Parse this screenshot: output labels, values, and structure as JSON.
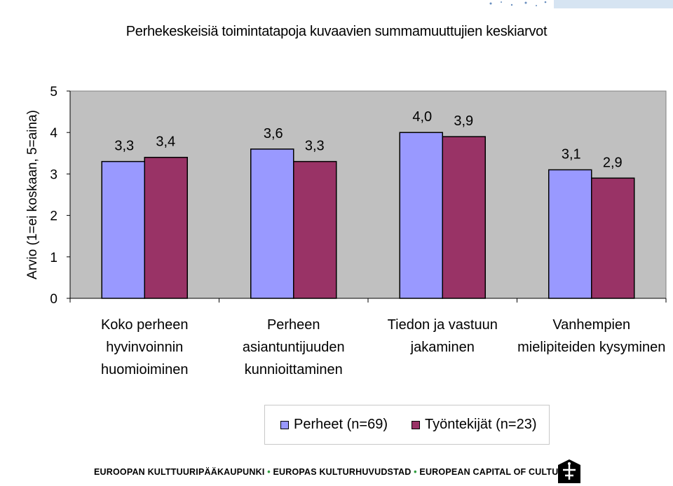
{
  "chart_data": {
    "type": "bar",
    "title": "Perhekeskeisiä toimintatapoja kuvaavien summamuuttujien keskiarvot",
    "ylabel": "Arvio (1=ei koskaan, 5=aina)",
    "xlabel": "",
    "ylim": [
      0,
      5
    ],
    "yticks": [
      "0",
      "1",
      "2",
      "3",
      "4",
      "5"
    ],
    "grid": false,
    "legend_position": "bottom",
    "categories": [
      "Koko perheen hyvinvoinnin huomioiminen",
      "Perheen asiantuntijuuden kunnioittaminen",
      "Tiedon ja vastuun jakaminen",
      "Vanhempien mielipiteiden kysyminen"
    ],
    "category_lines": [
      [
        "Koko perheen",
        "hyvinvoinnin",
        "huomioiminen"
      ],
      [
        "Perheen",
        "asiantuntijuuden",
        "kunnioittaminen"
      ],
      [
        "Tiedon ja vastuun",
        "jakaminen"
      ],
      [
        "Vanhempien",
        "mielipiteiden kysyminen"
      ]
    ],
    "series": [
      {
        "name": "Perheet (n=69)",
        "color": "#9999ff",
        "values": [
          3.3,
          3.6,
          4.0,
          3.1
        ],
        "labels": [
          "3,3",
          "3,6",
          "4,0",
          "3,1"
        ]
      },
      {
        "name": "Työntekijät (n=23)",
        "color": "#993366",
        "values": [
          3.4,
          3.3,
          3.9,
          2.9
        ],
        "labels": [
          "3,4",
          "3,3",
          "3,9",
          "2,9"
        ]
      }
    ],
    "plot_background": "#c0c0c0"
  },
  "footer": {
    "part1": "EUROOPAN KULTTUURIPÄÄKAUPUNKI",
    "part2": "EUROPAS KULTURHUVUDSTAD",
    "part3": "EUROPEAN CAPITAL OF CULTURE",
    "separator": "•"
  }
}
